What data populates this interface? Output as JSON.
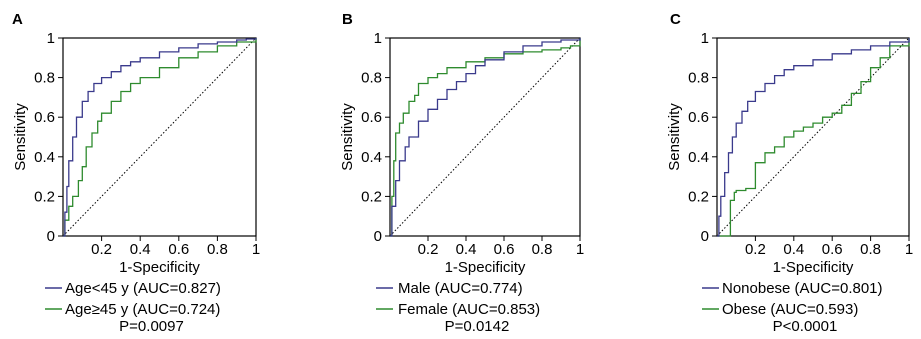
{
  "chart_data": [
    {
      "panel": "A",
      "type": "line",
      "xlabel": "1-Specificity",
      "ylabel": "Sensitivity",
      "xlim": [
        0,
        1
      ],
      "ylim": [
        0,
        1
      ],
      "xticks": [
        0.2,
        0.4,
        0.6,
        0.8,
        1
      ],
      "xtick_labels": [
        "0.2",
        "0.4",
        "0.6",
        "0.8",
        "1"
      ],
      "yticks": [
        0,
        0.2,
        0.4,
        0.6,
        0.8,
        1
      ],
      "ytick_labels": [
        "0",
        "0.2",
        "0.4",
        "0.6",
        "0.8",
        "1"
      ],
      "reference_line": true,
      "series": [
        {
          "name": "Age<45 y (AUC=0.827)",
          "color": "#3a3a8c",
          "x": [
            0,
            0.01,
            0.02,
            0.03,
            0.05,
            0.07,
            0.1,
            0.13,
            0.16,
            0.2,
            0.25,
            0.3,
            0.35,
            0.4,
            0.5,
            0.6,
            0.7,
            0.8,
            0.9,
            0.95,
            1
          ],
          "y": [
            0,
            0.12,
            0.25,
            0.38,
            0.5,
            0.6,
            0.68,
            0.73,
            0.77,
            0.8,
            0.83,
            0.86,
            0.88,
            0.9,
            0.93,
            0.95,
            0.97,
            0.98,
            0.99,
            0.995,
            1
          ]
        },
        {
          "name": "Age≥45 y (AUC=0.724)",
          "color": "#2e8b2e",
          "x": [
            0,
            0.01,
            0.03,
            0.05,
            0.08,
            0.1,
            0.12,
            0.15,
            0.18,
            0.2,
            0.25,
            0.3,
            0.35,
            0.4,
            0.5,
            0.6,
            0.7,
            0.8,
            0.9,
            1
          ],
          "y": [
            0,
            0.08,
            0.15,
            0.2,
            0.28,
            0.35,
            0.45,
            0.52,
            0.58,
            0.62,
            0.68,
            0.73,
            0.77,
            0.8,
            0.85,
            0.9,
            0.93,
            0.96,
            0.98,
            1
          ]
        }
      ],
      "legend": [
        "Age<45 y (AUC=0.827)",
        "Age≥45 y (AUC=0.724)"
      ],
      "pvalue": "P=0.0097"
    },
    {
      "panel": "B",
      "type": "line",
      "xlabel": "1-Specificity",
      "ylabel": "Sensitivity",
      "xlim": [
        0,
        1
      ],
      "ylim": [
        0,
        1
      ],
      "xticks": [
        0.2,
        0.4,
        0.6,
        0.8,
        1
      ],
      "xtick_labels": [
        "0.2",
        "0.4",
        "0.6",
        "0.8",
        "1"
      ],
      "yticks": [
        0,
        0.2,
        0.4,
        0.6,
        0.8,
        1
      ],
      "ytick_labels": [
        "0",
        "0.2",
        "0.4",
        "0.6",
        "0.8",
        "1"
      ],
      "reference_line": true,
      "series": [
        {
          "name": "Male (AUC=0.774)",
          "color": "#3a3a8c",
          "x": [
            0,
            0.01,
            0.03,
            0.05,
            0.08,
            0.1,
            0.15,
            0.2,
            0.25,
            0.3,
            0.35,
            0.4,
            0.45,
            0.5,
            0.6,
            0.7,
            0.8,
            0.9,
            1
          ],
          "y": [
            0,
            0.15,
            0.28,
            0.38,
            0.45,
            0.5,
            0.58,
            0.64,
            0.69,
            0.74,
            0.78,
            0.82,
            0.86,
            0.89,
            0.93,
            0.96,
            0.98,
            0.99,
            1
          ]
        },
        {
          "name": "Female (AUC=0.853)",
          "color": "#2e8b2e",
          "x": [
            0,
            0.01,
            0.02,
            0.03,
            0.05,
            0.07,
            0.1,
            0.13,
            0.15,
            0.2,
            0.25,
            0.3,
            0.4,
            0.5,
            0.6,
            0.7,
            0.8,
            0.9,
            0.95,
            1
          ],
          "y": [
            0,
            0.2,
            0.38,
            0.52,
            0.57,
            0.62,
            0.68,
            0.71,
            0.77,
            0.8,
            0.82,
            0.85,
            0.88,
            0.9,
            0.92,
            0.93,
            0.94,
            0.95,
            0.96,
            1
          ]
        }
      ],
      "legend": [
        "Male (AUC=0.774)",
        "Female (AUC=0.853)"
      ],
      "pvalue": "P=0.0142"
    },
    {
      "panel": "C",
      "type": "line",
      "xlabel": "1-Specificity",
      "ylabel": "Sensitivity",
      "xlim": [
        0,
        1
      ],
      "ylim": [
        0,
        1
      ],
      "xticks": [
        0.2,
        0.4,
        0.6,
        0.8,
        1
      ],
      "xtick_labels": [
        "0.2",
        "0.4",
        "0.6",
        "0.8",
        "1"
      ],
      "yticks": [
        0,
        0.2,
        0.4,
        0.6,
        0.8,
        1
      ],
      "ytick_labels": [
        "0",
        "0.2",
        "0.4",
        "0.6",
        "0.8",
        "1"
      ],
      "reference_line": true,
      "series": [
        {
          "name": "Nonobese (AUC=0.801)",
          "color": "#3a3a8c",
          "x": [
            0,
            0.01,
            0.02,
            0.04,
            0.06,
            0.08,
            0.1,
            0.13,
            0.16,
            0.2,
            0.25,
            0.3,
            0.35,
            0.4,
            0.5,
            0.6,
            0.7,
            0.8,
            0.9,
            1
          ],
          "y": [
            0,
            0.1,
            0.2,
            0.32,
            0.42,
            0.5,
            0.57,
            0.63,
            0.68,
            0.73,
            0.77,
            0.81,
            0.84,
            0.86,
            0.89,
            0.92,
            0.94,
            0.96,
            0.98,
            1
          ]
        },
        {
          "name": "Obese (AUC=0.593)",
          "color": "#2e8b2e",
          "x": [
            0,
            0.05,
            0.07,
            0.09,
            0.1,
            0.15,
            0.2,
            0.25,
            0.3,
            0.35,
            0.4,
            0.45,
            0.5,
            0.55,
            0.6,
            0.65,
            0.7,
            0.75,
            0.8,
            0.85,
            0.9,
            1
          ],
          "y": [
            0,
            0,
            0.18,
            0.22,
            0.23,
            0.24,
            0.37,
            0.42,
            0.45,
            0.5,
            0.53,
            0.55,
            0.57,
            0.6,
            0.62,
            0.66,
            0.72,
            0.78,
            0.85,
            0.9,
            0.96,
            1
          ]
        }
      ],
      "legend": [
        "Nonobese (AUC=0.801)",
        "Obese (AUC=0.593)"
      ],
      "pvalue": "P<0.0001"
    }
  ]
}
